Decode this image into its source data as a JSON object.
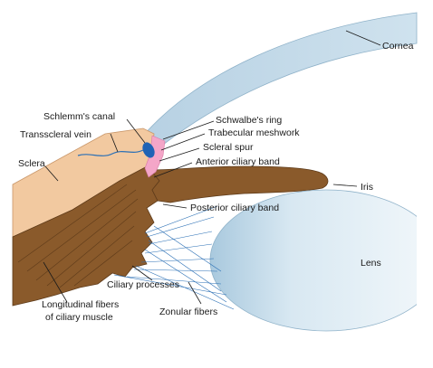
{
  "diagram": {
    "labels": {
      "cornea": "Cornea",
      "schlemms_canal": "Schlemm's canal",
      "transscleral_vein": "Transscleral vein",
      "sclera": "Sclera",
      "schwalbes_ring": "Schwalbe's ring",
      "trabecular_meshwork": "Trabecular meshwork",
      "scleral_spur": "Scleral spur",
      "anterior_ciliary_band": "Anterior ciliary band",
      "iris": "Iris",
      "posterior_ciliary_band": "Posterior ciliary band",
      "lens": "Lens",
      "ciliary_processes": "Ciliary processes",
      "longitudinal_fibers_line1": "Longitudinal fibers",
      "longitudinal_fibers_line2": "of ciliary muscle",
      "zonular_fibers": "Zonular fibers"
    },
    "colors": {
      "cornea": "#b9d3e4",
      "sclera": "#f2c9a0",
      "ciliary_muscle": "#8a5a2b",
      "iris": "#8a5a2b",
      "schlemms_canal": "#1f63b5",
      "trabecular_meshwork": "#f4a6c8",
      "vein": "#2a6fb5",
      "lens": "#cfe3ef",
      "zonular_fibers": "#2a6fb5"
    }
  }
}
